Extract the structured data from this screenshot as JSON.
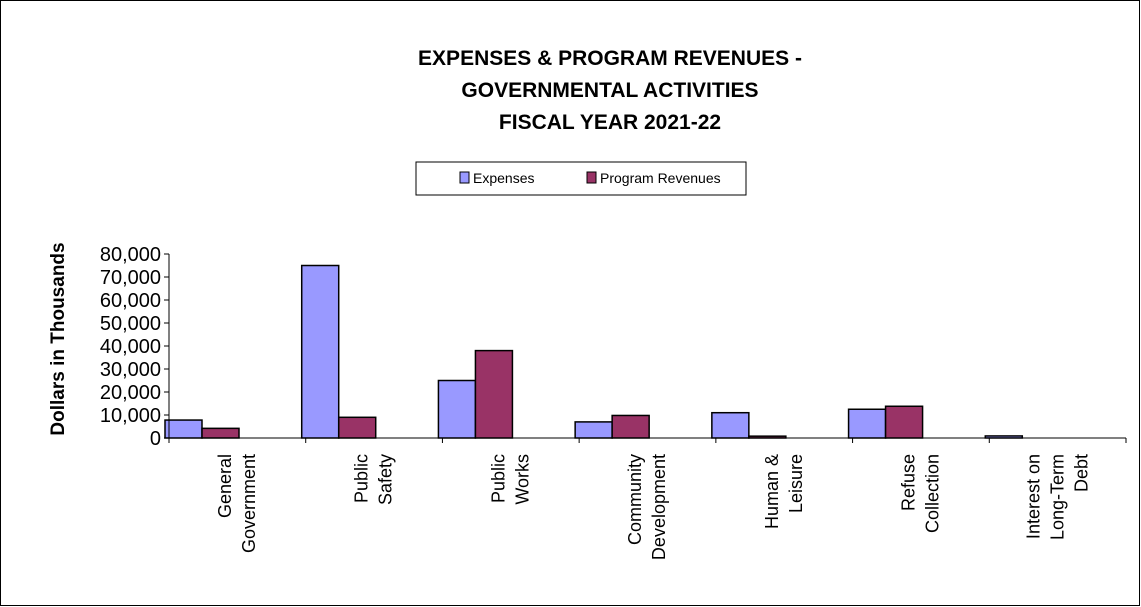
{
  "chart_data": {
    "type": "bar",
    "title": [
      "EXPENSES & PROGRAM REVENUES -",
      "GOVERNMENTAL  ACTIVITIES",
      "FISCAL YEAR 2021-22"
    ],
    "ylabel": "Dollars in Thousands",
    "xlabel": "",
    "ylim": [
      0,
      80000
    ],
    "yticks": [
      0,
      10000,
      20000,
      30000,
      40000,
      50000,
      60000,
      70000,
      80000
    ],
    "ytick_labels": [
      "0",
      "10,000",
      "20,000",
      "30,000",
      "40,000",
      "50,000",
      "60,000",
      "70,000",
      "80,000"
    ],
    "categories": [
      [
        "General",
        "Government"
      ],
      [
        "Public",
        "Safety"
      ],
      [
        "Public",
        "Works"
      ],
      [
        "Community",
        "Development"
      ],
      [
        "Human &",
        "Leisure"
      ],
      [
        "Refuse",
        "Collection"
      ],
      [
        "Interest on",
        "Long-Term",
        "Debt"
      ]
    ],
    "series": [
      {
        "name": "Expenses",
        "color": "#9999ff",
        "values": [
          7800,
          75000,
          25000,
          7000,
          11000,
          12500,
          900
        ]
      },
      {
        "name": "Program Revenues",
        "color": "#993366",
        "values": [
          4200,
          9000,
          38000,
          9800,
          800,
          13800,
          0
        ]
      }
    ],
    "legend_position": "top-center",
    "grid": false
  }
}
